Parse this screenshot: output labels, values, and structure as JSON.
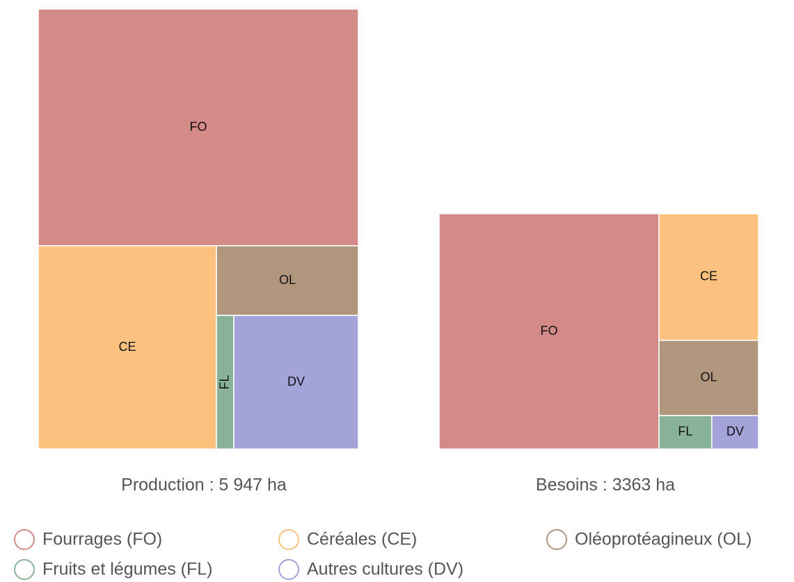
{
  "legend": {
    "labels": [
      "Fourrages (FO)",
      "Céréales (CE)",
      "Oléoprotéagineux (OL)",
      "Fruits et légumes (FL)",
      "Autres cultures (DV)"
    ],
    "colors": [
      "#d48a87",
      "#fdc17f",
      "#b0967c",
      "#89b398",
      "#a3a3d9"
    ]
  },
  "chart_data": [
    {
      "type": "treemap",
      "title": "Production : 5 947 ha",
      "categories": [
        "FO",
        "CE",
        "OL",
        "FL",
        "DV"
      ],
      "values": [
        3200,
        1529,
        417,
        98,
        703
      ]
    },
    {
      "type": "treemap",
      "title": "Besoins : 3363 ha",
      "categories": [
        "FO",
        "CE",
        "OL",
        "FL",
        "DV"
      ],
      "values": [
        2315,
        564,
        335,
        79,
        70
      ]
    }
  ]
}
